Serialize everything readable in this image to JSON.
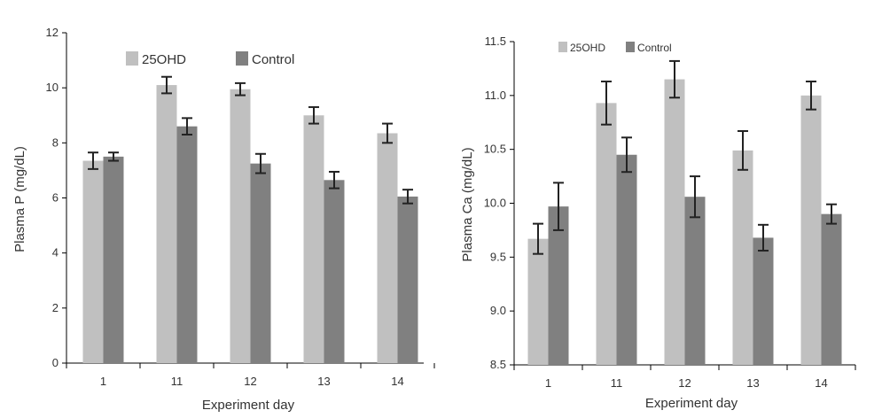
{
  "chart_data": [
    {
      "type": "bar",
      "xlabel": "Experiment day",
      "ylabel": "Plasma P (mg/dL)",
      "categories": [
        "1",
        "11",
        "12",
        "13",
        "14"
      ],
      "ylim": [
        0,
        12
      ],
      "yticks": [
        "0",
        "2",
        "4",
        "6",
        "8",
        "10",
        "12"
      ],
      "legend_position": "top",
      "grid": false,
      "series": [
        {
          "name": "25OHD",
          "color": "#c0c0c0",
          "values": [
            7.35,
            10.1,
            9.95,
            9.0,
            8.35
          ],
          "errors": [
            0.3,
            0.3,
            0.22,
            0.3,
            0.35
          ]
        },
        {
          "name": "Control",
          "color": "#808080",
          "values": [
            7.5,
            8.6,
            7.25,
            6.65,
            6.05
          ],
          "errors": [
            0.15,
            0.3,
            0.35,
            0.3,
            0.25
          ]
        }
      ]
    },
    {
      "type": "bar",
      "xlabel": "Experiment day",
      "ylabel": "Plasma Ca (mg/dL)",
      "categories": [
        "1",
        "11",
        "12",
        "13",
        "14"
      ],
      "ylim": [
        8.5,
        11.5
      ],
      "yticks": [
        "8.5",
        "9.0",
        "9.5",
        "10.0",
        "10.5",
        "11.0",
        "11.5"
      ],
      "legend_position": "top-left",
      "grid": false,
      "series": [
        {
          "name": "25OHD",
          "color": "#c0c0c0",
          "values": [
            9.67,
            10.93,
            11.15,
            10.49,
            11.0
          ],
          "errors": [
            0.14,
            0.2,
            0.17,
            0.18,
            0.13
          ]
        },
        {
          "name": "Control",
          "color": "#808080",
          "values": [
            9.97,
            10.45,
            10.06,
            9.68,
            9.9
          ],
          "errors": [
            0.22,
            0.16,
            0.19,
            0.12,
            0.09
          ]
        }
      ]
    }
  ]
}
